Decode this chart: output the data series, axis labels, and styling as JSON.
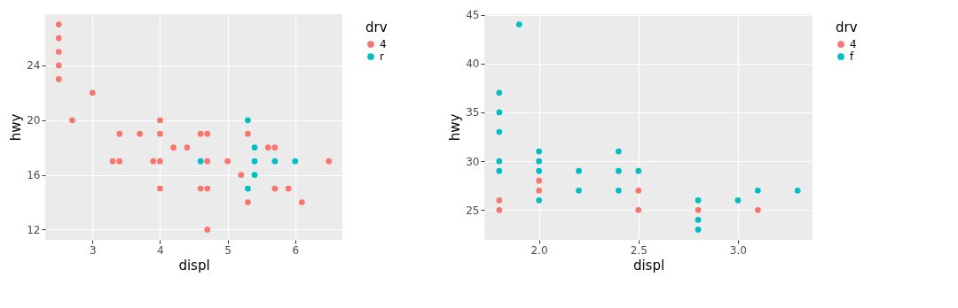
{
  "chart_data": [
    {
      "type": "scatter",
      "xlabel": "displ",
      "ylabel": "hwy",
      "legend_title": "drv",
      "legend": "right",
      "marker": "circle",
      "grid": true,
      "xlim": [
        2.3,
        6.7
      ],
      "ylim": [
        11.25,
        27.75
      ],
      "xticks": [
        3,
        4,
        5,
        6
      ],
      "yticks": [
        12,
        16,
        20,
        24
      ],
      "series": [
        {
          "name": "4",
          "color": "#f8766d",
          "x": [
            2.5,
            2.5,
            2.5,
            2.5,
            2.5,
            3.0,
            2.7,
            4.0,
            4.0,
            4.0,
            4.0,
            3.4,
            3.4,
            3.3,
            3.7,
            4.6,
            4.6,
            4.7,
            4.7,
            4.7,
            4.7,
            4.2,
            4.4,
            3.9,
            5.0,
            5.2,
            5.3,
            5.3,
            5.6,
            5.7,
            5.7,
            5.9,
            6.1,
            6.5
          ],
          "values": [
            27,
            26,
            25,
            24,
            23,
            22,
            20,
            20,
            19,
            17,
            15,
            19,
            17,
            17,
            19,
            19,
            15,
            19,
            17,
            15,
            12,
            18,
            18,
            17,
            17,
            16,
            19,
            14,
            18,
            18,
            15,
            15,
            14,
            17
          ]
        },
        {
          "name": "r",
          "color": "#00bfc4",
          "x": [
            4.6,
            5.3,
            5.3,
            5.4,
            5.4,
            5.4,
            5.7,
            6.0
          ],
          "values": [
            17,
            20,
            15,
            18,
            17,
            16,
            17,
            17
          ]
        }
      ]
    },
    {
      "type": "scatter",
      "xlabel": "displ",
      "ylabel": "hwy",
      "legend_title": "drv",
      "legend": "right",
      "marker": "circle",
      "grid": true,
      "xlim": [
        1.725,
        3.375
      ],
      "ylim": [
        21.95,
        45.05
      ],
      "xticks": [
        {
          "value": 2,
          "label": "2.0"
        },
        {
          "value": 2.5,
          "label": "2.5"
        },
        {
          "value": 3,
          "label": "3.0"
        }
      ],
      "yticks": [
        25,
        30,
        35,
        40,
        45
      ],
      "series": [
        {
          "name": "4",
          "color": "#f8766d",
          "x": [
            1.8,
            1.8,
            2.0,
            2.0,
            2.5,
            2.5,
            2.8,
            3.1
          ],
          "values": [
            26,
            25,
            28,
            27,
            27,
            25,
            25,
            25
          ]
        },
        {
          "name": "f",
          "color": "#00bfc4",
          "x": [
            1.8,
            1.8,
            1.8,
            1.8,
            1.8,
            1.9,
            2.0,
            2.0,
            2.0,
            2.0,
            2.2,
            2.2,
            2.4,
            2.4,
            2.4,
            2.5,
            2.8,
            2.8,
            2.8,
            3.0,
            3.1,
            3.3
          ],
          "values": [
            37,
            35,
            33,
            30,
            29,
            44,
            31,
            30,
            29,
            26,
            29,
            27,
            31,
            29,
            27,
            29,
            26,
            24,
            23,
            26,
            27,
            27
          ]
        }
      ]
    }
  ]
}
